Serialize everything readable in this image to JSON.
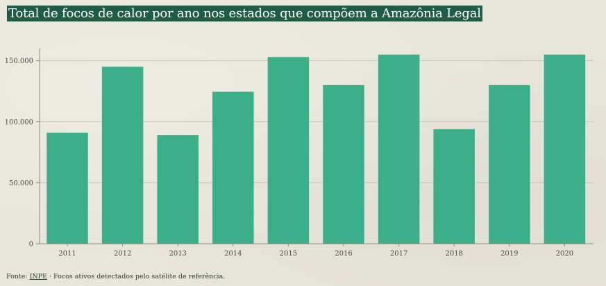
{
  "title": "Total de focos de calor por ano nos estados que compõem a Amazônia Legal",
  "footer": {
    "prefix": "Fonte: ",
    "source_link": "INPE",
    "suffix": " · Focos ativos detectados pelo satélite de referência."
  },
  "colors": {
    "bar": "#3aaf8a",
    "title_bg": "#1f5c45",
    "grid": "#c9c6bd",
    "axis": "#8f8b82",
    "background": "#e8e5da"
  },
  "chart_data": {
    "type": "bar",
    "title": "Total de focos de calor por ano nos estados que compõem a Amazônia Legal",
    "xlabel": "",
    "ylabel": "",
    "categories": [
      "2011",
      "2012",
      "2013",
      "2014",
      "2015",
      "2016",
      "2017",
      "2018",
      "2019",
      "2020"
    ],
    "values": [
      91000,
      145000,
      89000,
      124500,
      153000,
      130000,
      155000,
      94000,
      130000,
      155000
    ],
    "ylim": [
      0,
      160000
    ],
    "yticks": [
      0,
      50000,
      100000,
      150000
    ],
    "ytick_labels": [
      "0",
      "50.000",
      "100.000",
      "150.000"
    ],
    "grid": true,
    "legend": "none"
  }
}
